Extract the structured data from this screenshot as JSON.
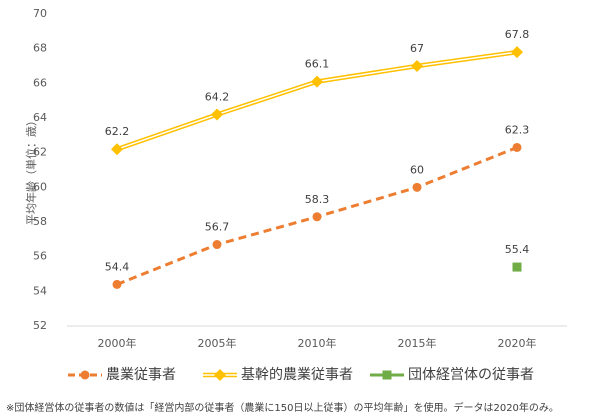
{
  "chart_data": {
    "type": "line",
    "y_label": "平均年齢（単位：歳）",
    "categories": [
      "2000年",
      "2005年",
      "2010年",
      "2015年",
      "2020年"
    ],
    "series": [
      {
        "name": "農業従事者",
        "color": "#ed7d31",
        "marker": "circle",
        "style": "dashed",
        "values": [
          54.4,
          56.7,
          58.3,
          60,
          62.3
        ]
      },
      {
        "name": "基幹的農業従事者",
        "color": "#ffc000",
        "marker": "diamond",
        "style": "double",
        "values": [
          62.2,
          64.2,
          66.1,
          67,
          67.8
        ]
      },
      {
        "name": "団体経営体の従事者",
        "color": "#70ad47",
        "marker": "square",
        "style": "none",
        "values": [
          null,
          null,
          null,
          null,
          55.4
        ]
      }
    ],
    "ylim": [
      52,
      70
    ],
    "yticks": [
      52,
      54,
      56,
      58,
      60,
      62,
      64,
      66,
      68,
      70
    ],
    "note": "※団体経営体の従事者の数値は「経営内部の従事者（農業に150日以上従事）の平均年齢」を使用。データは2020年のみ。"
  }
}
